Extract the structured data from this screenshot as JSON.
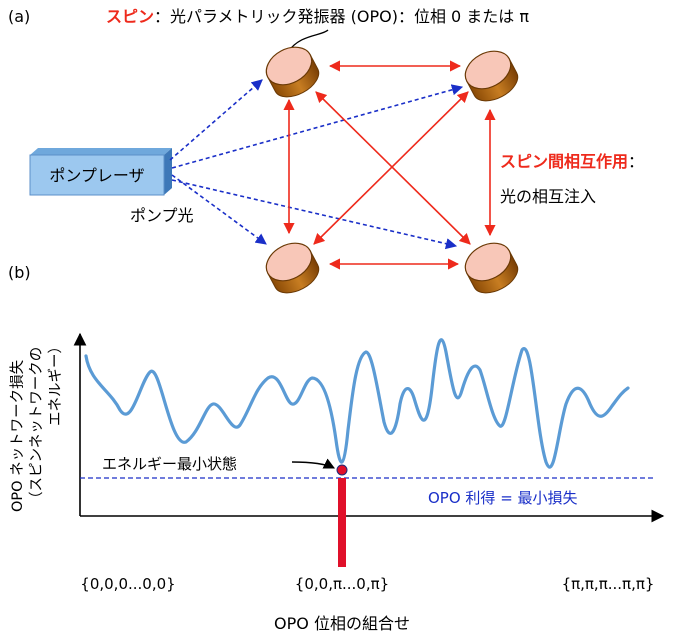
{
  "panel_a": {
    "label": "(a)",
    "spin_title_red": "スピン",
    "spin_title_rest": "：光パラメトリック発振器 (OPO)：位相 0 または π",
    "laser_label": "ポンプレーザ",
    "pump_light_label": "ポンプ光",
    "interaction_red": "スピン間相互作用",
    "interaction_colon": "：",
    "interaction_desc": "光の相互注入",
    "colors": {
      "red": "#ee2a1c",
      "blue": "#1a2fc8",
      "laser": "#9cc8ef",
      "cyl_top": "#f8c7b8",
      "cyl_side": "#b36a12"
    }
  },
  "panel_b": {
    "label": "(b)",
    "ylabel_lines": [
      "OPO ネットワーク損失",
      "（スピンネットワークの",
      "エネルギー）"
    ],
    "xlabel": "OPO 位相の組合せ",
    "x_ticks": [
      "{0,0,0...0,0}",
      "{0,0,π...0,π}",
      "{π,π,π...π,π}"
    ],
    "min_state_label": "エネルギー最小状態",
    "gain_label": "OPO 利得 = 最小損失",
    "colors": {
      "curve": "#5b9bd5",
      "gain": "#1a2fc8",
      "marker": "#e0102a"
    }
  }
}
